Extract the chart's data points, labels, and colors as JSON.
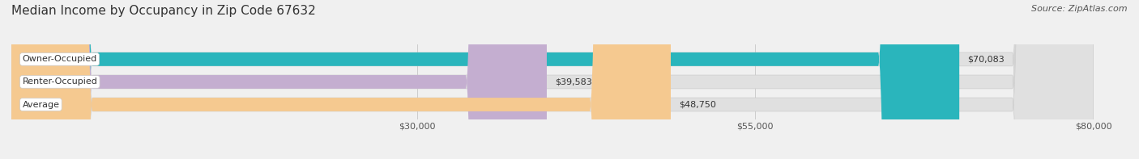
{
  "title": "Median Income by Occupancy in Zip Code 67632",
  "source": "Source: ZipAtlas.com",
  "categories": [
    "Owner-Occupied",
    "Renter-Occupied",
    "Average"
  ],
  "values": [
    70083,
    39583,
    48750
  ],
  "labels": [
    "$70,083",
    "$39,583",
    "$48,750"
  ],
  "bar_colors": [
    "#2ab5bc",
    "#c4aed0",
    "#f5c990"
  ],
  "background_color": "#f0f0f0",
  "bar_bg_color": "#e0e0e0",
  "xlim": [
    0,
    80000
  ],
  "xticks": [
    30000,
    55000,
    80000
  ],
  "xtick_labels": [
    "$30,000",
    "$55,000",
    "$80,000"
  ],
  "title_fontsize": 11,
  "source_fontsize": 8,
  "label_fontsize": 8,
  "category_fontsize": 8,
  "bar_height": 0.6,
  "figsize": [
    14.06,
    1.97
  ],
  "dpi": 100
}
